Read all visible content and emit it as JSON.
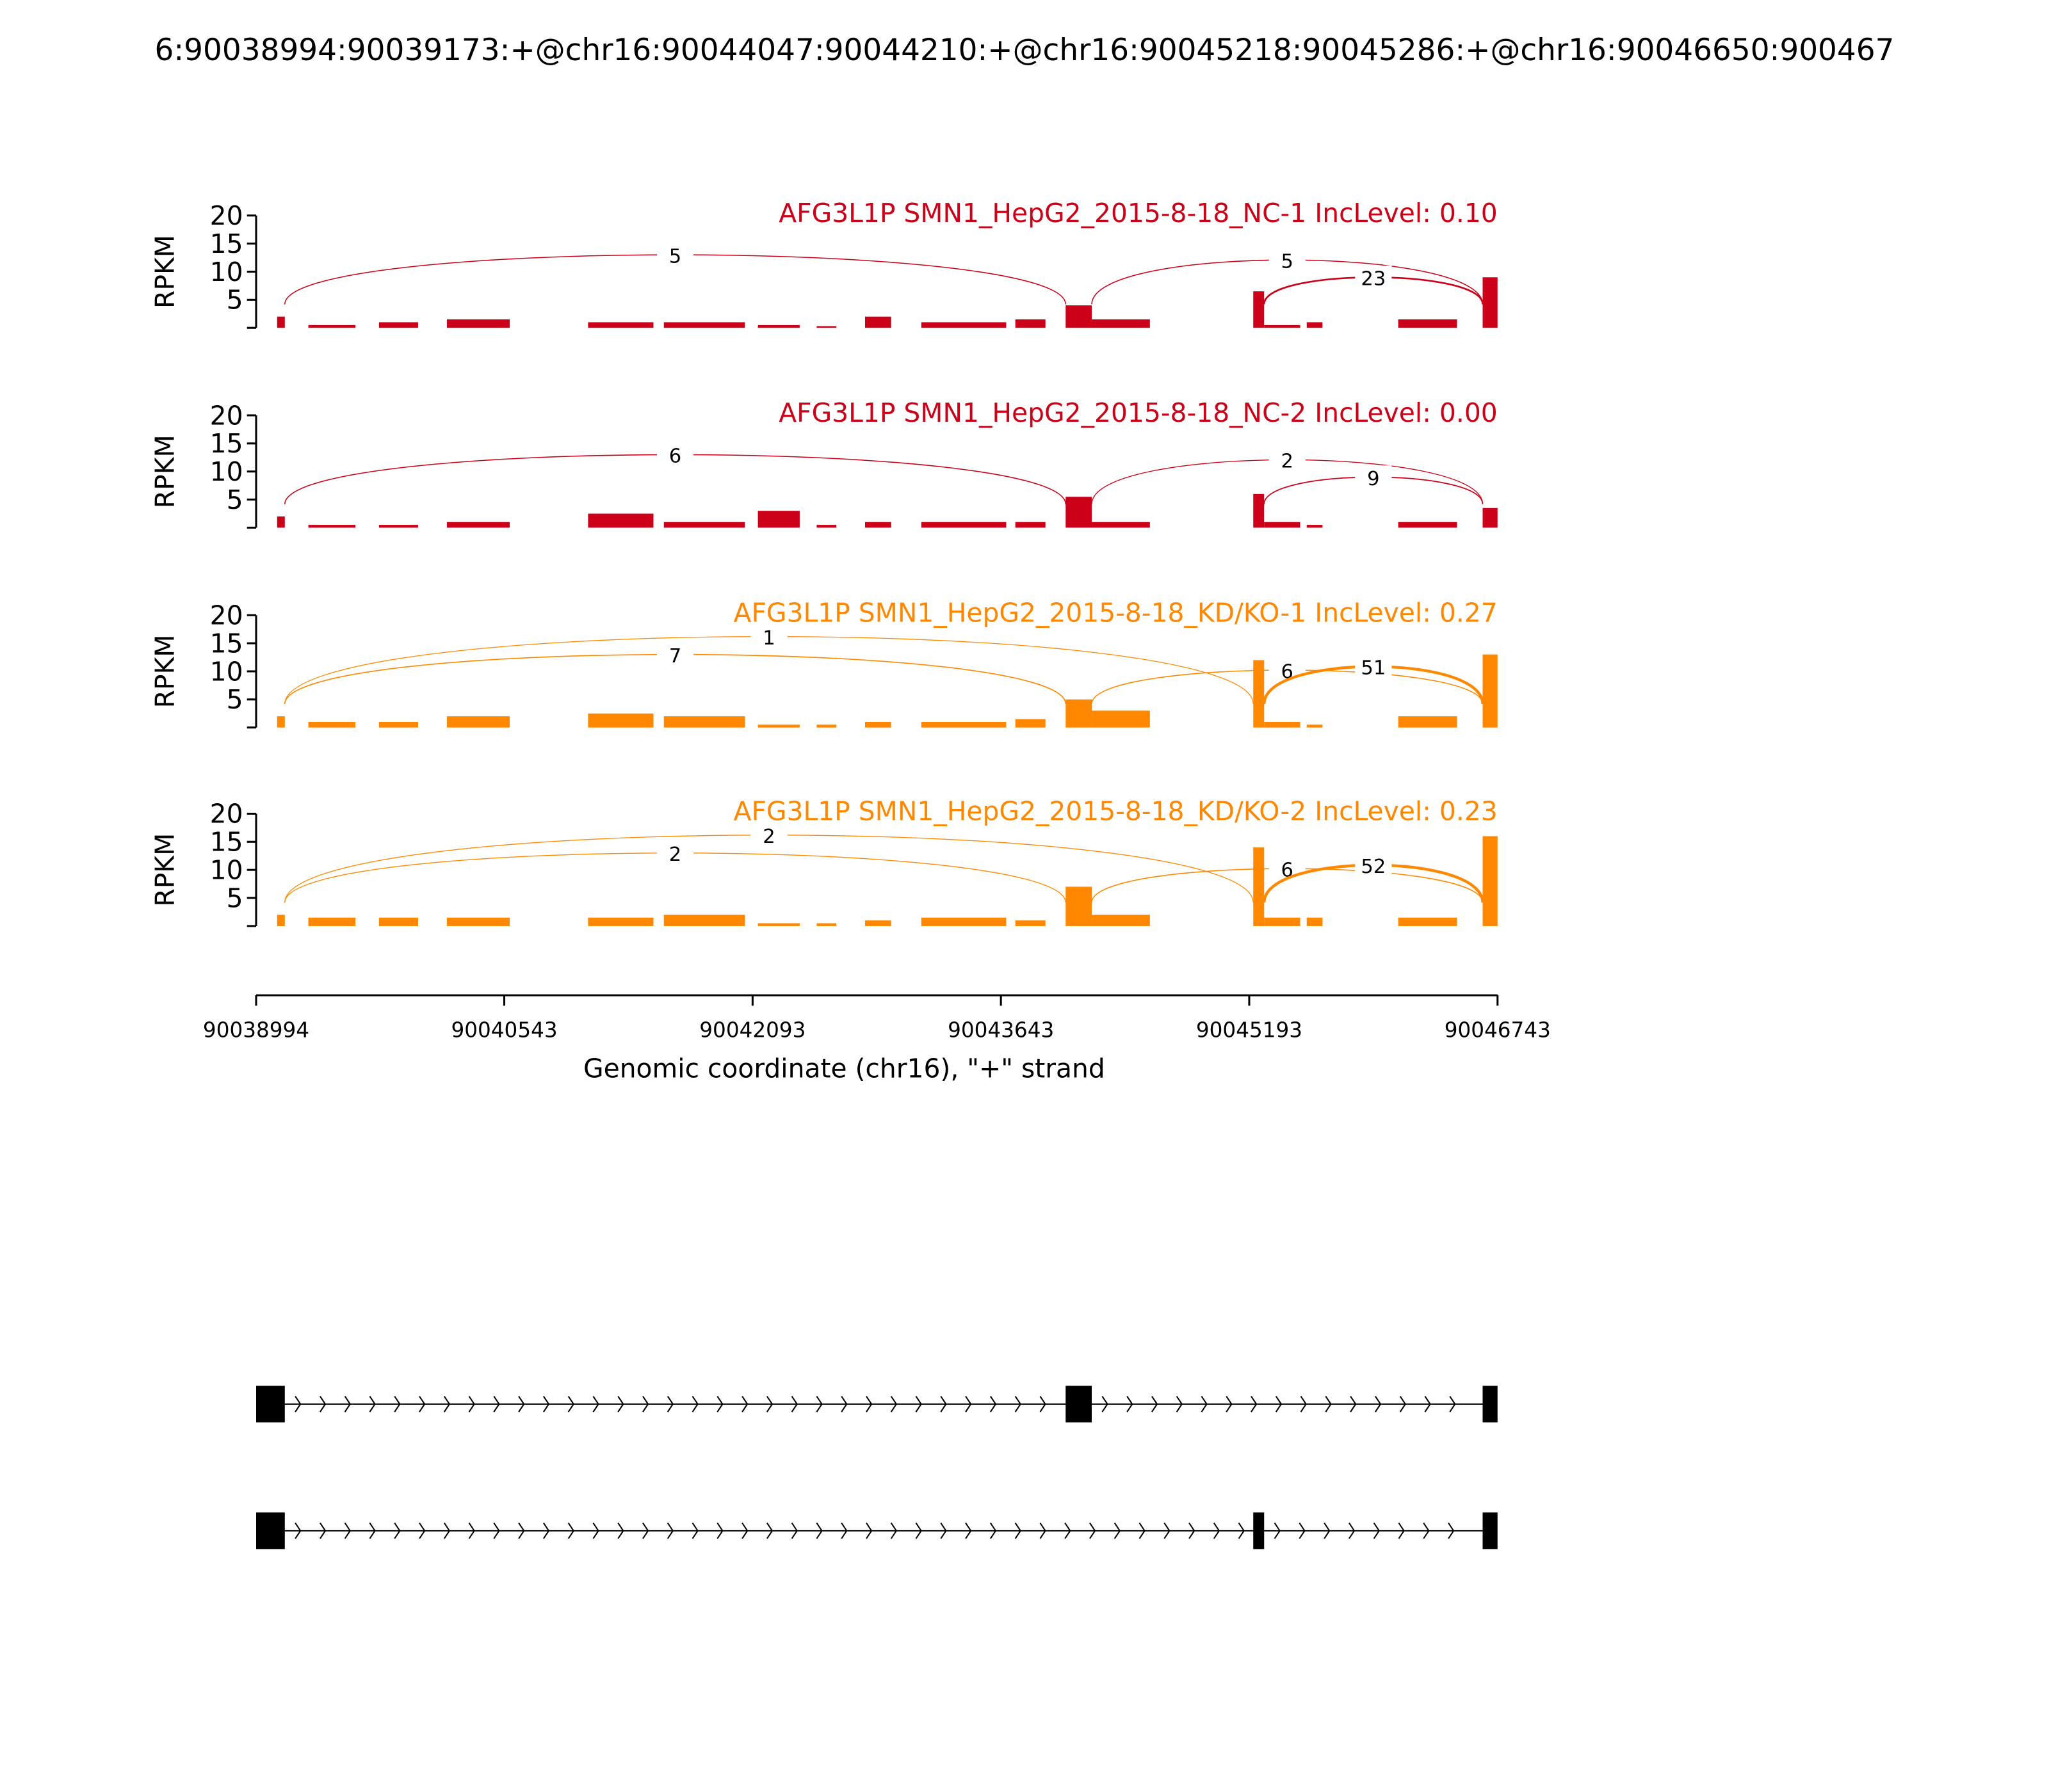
{
  "title": "6:90038994:90039173:+@chr16:90044047:90044210:+@chr16:90045218:90045286:+@chr16:90046650:900467",
  "x_axis": {
    "label": "Genomic coordinate (chr16), \"+\" strand",
    "xlim": [
      90038994,
      90046743
    ],
    "xticks": [
      90038994,
      90040543,
      90042093,
      90043643,
      90045193,
      90046743
    ]
  },
  "chart_data": [
    {
      "type": "sashimi",
      "title": "AFG3L1P SMN1_HepG2_2015-8-18_NC-1 IncLevel: 0.10",
      "color": "#cc0018",
      "ylabel": "RPKM",
      "ylim": [
        0,
        20
      ],
      "yticks": [
        5,
        10,
        15,
        20
      ],
      "coverage": {
        "starts": [
          90039125,
          90039320,
          90039761,
          90040185,
          90041066,
          90041539,
          90042126,
          90042493,
          90042795,
          90043146,
          90043733,
          90044047,
          90044210,
          90045218,
          90045286,
          90045552,
          90046123,
          90046650
        ],
        "ends": [
          90039173,
          90039614,
          90040005,
          90040577,
          90041474,
          90042045,
          90042387,
          90042616,
          90042958,
          90043676,
          90043921,
          90044210,
          90044573,
          90045286,
          90045511,
          90045650,
          90046490,
          90046743
        ],
        "values": [
          2,
          0.5,
          1,
          1.5,
          1,
          1,
          0.5,
          0.3,
          2,
          1,
          1.5,
          4,
          1.5,
          6.5,
          0.5,
          1,
          1.5,
          9
        ]
      },
      "junctions": [
        {
          "start": 90039173,
          "end": 90044047,
          "count": 5
        },
        {
          "start": 90044210,
          "end": 90046650,
          "count": 5
        },
        {
          "start": 90045286,
          "end": 90046650,
          "count": 23
        }
      ]
    },
    {
      "type": "sashimi",
      "title": "AFG3L1P SMN1_HepG2_2015-8-18_NC-2 IncLevel: 0.00",
      "color": "#cc0018",
      "ylabel": "RPKM",
      "ylim": [
        0,
        20
      ],
      "yticks": [
        5,
        10,
        15,
        20
      ],
      "coverage": {
        "starts": [
          90039125,
          90039320,
          90039761,
          90040185,
          90041066,
          90041539,
          90042126,
          90042493,
          90042795,
          90043146,
          90043733,
          90044047,
          90044210,
          90045218,
          90045286,
          90045552,
          90046123,
          90046650
        ],
        "ends": [
          90039173,
          90039614,
          90040005,
          90040577,
          90041474,
          90042045,
          90042387,
          90042616,
          90042958,
          90043676,
          90043921,
          90044210,
          90044573,
          90045286,
          90045511,
          90045650,
          90046490,
          90046743
        ],
        "values": [
          2,
          0.5,
          0.5,
          1,
          2.5,
          1,
          3,
          0.5,
          1,
          1,
          1,
          5.5,
          1,
          6,
          1,
          0.5,
          1,
          3.5
        ]
      },
      "junctions": [
        {
          "start": 90039173,
          "end": 90044047,
          "count": 6
        },
        {
          "start": 90044210,
          "end": 90046650,
          "count": 2
        },
        {
          "start": 90045286,
          "end": 90046650,
          "count": 9
        }
      ]
    },
    {
      "type": "sashimi",
      "title": "AFG3L1P SMN1_HepG2_2015-8-18_KD/KO-1 IncLevel: 0.27",
      "color": "#ff8800",
      "ylabel": "RPKM",
      "ylim": [
        0,
        20
      ],
      "yticks": [
        5,
        10,
        15,
        20
      ],
      "coverage": {
        "starts": [
          90039125,
          90039320,
          90039761,
          90040185,
          90041066,
          90041539,
          90042126,
          90042493,
          90042795,
          90043146,
          90043733,
          90044047,
          90044210,
          90045218,
          90045286,
          90045552,
          90046123,
          90046650
        ],
        "ends": [
          90039173,
          90039614,
          90040005,
          90040577,
          90041474,
          90042045,
          90042387,
          90042616,
          90042958,
          90043676,
          90043921,
          90044210,
          90044573,
          90045286,
          90045511,
          90045650,
          90046490,
          90046743
        ],
        "values": [
          2,
          1,
          1,
          2,
          2.5,
          2,
          0.5,
          0.5,
          1,
          1,
          1.5,
          5,
          3,
          12,
          1,
          0.5,
          2,
          13
        ]
      },
      "junctions": [
        {
          "start": 90039173,
          "end": 90044047,
          "count": 7
        },
        {
          "start": 90039173,
          "end": 90045218,
          "count": 1
        },
        {
          "start": 90044210,
          "end": 90046650,
          "count": 6
        },
        {
          "start": 90045286,
          "end": 90046650,
          "count": 51
        }
      ]
    },
    {
      "type": "sashimi",
      "title": "AFG3L1P SMN1_HepG2_2015-8-18_KD/KO-2 IncLevel: 0.23",
      "color": "#ff8800",
      "ylabel": "RPKM",
      "ylim": [
        0,
        20
      ],
      "yticks": [
        5,
        10,
        15,
        20
      ],
      "coverage": {
        "starts": [
          90039125,
          90039320,
          90039761,
          90040185,
          90041066,
          90041539,
          90042126,
          90042493,
          90042795,
          90043146,
          90043733,
          90044047,
          90044210,
          90045218,
          90045286,
          90045552,
          90046123,
          90046650
        ],
        "ends": [
          90039173,
          90039614,
          90040005,
          90040577,
          90041474,
          90042045,
          90042387,
          90042616,
          90042958,
          90043676,
          90043921,
          90044210,
          90044573,
          90045286,
          90045511,
          90045650,
          90046490,
          90046743
        ],
        "values": [
          2,
          1.5,
          1.5,
          1.5,
          1.5,
          2,
          0.5,
          0.5,
          1,
          1.5,
          1,
          7,
          2,
          14,
          1.5,
          1.5,
          1.5,
          16
        ]
      },
      "junctions": [
        {
          "start": 90039173,
          "end": 90044047,
          "count": 2
        },
        {
          "start": 90039173,
          "end": 90045218,
          "count": 2
        },
        {
          "start": 90044210,
          "end": 90046650,
          "count": 6
        },
        {
          "start": 90045286,
          "end": 90046650,
          "count": 52
        }
      ]
    }
  ],
  "gene_model": {
    "isoforms": [
      {
        "starts": [
          90038994,
          90044047,
          90046650
        ],
        "ends": [
          90039173,
          90044210,
          90046743
        ]
      },
      {
        "starts": [
          90038994,
          90045218,
          90046650
        ],
        "ends": [
          90039173,
          90045286,
          90046743
        ]
      }
    ]
  }
}
